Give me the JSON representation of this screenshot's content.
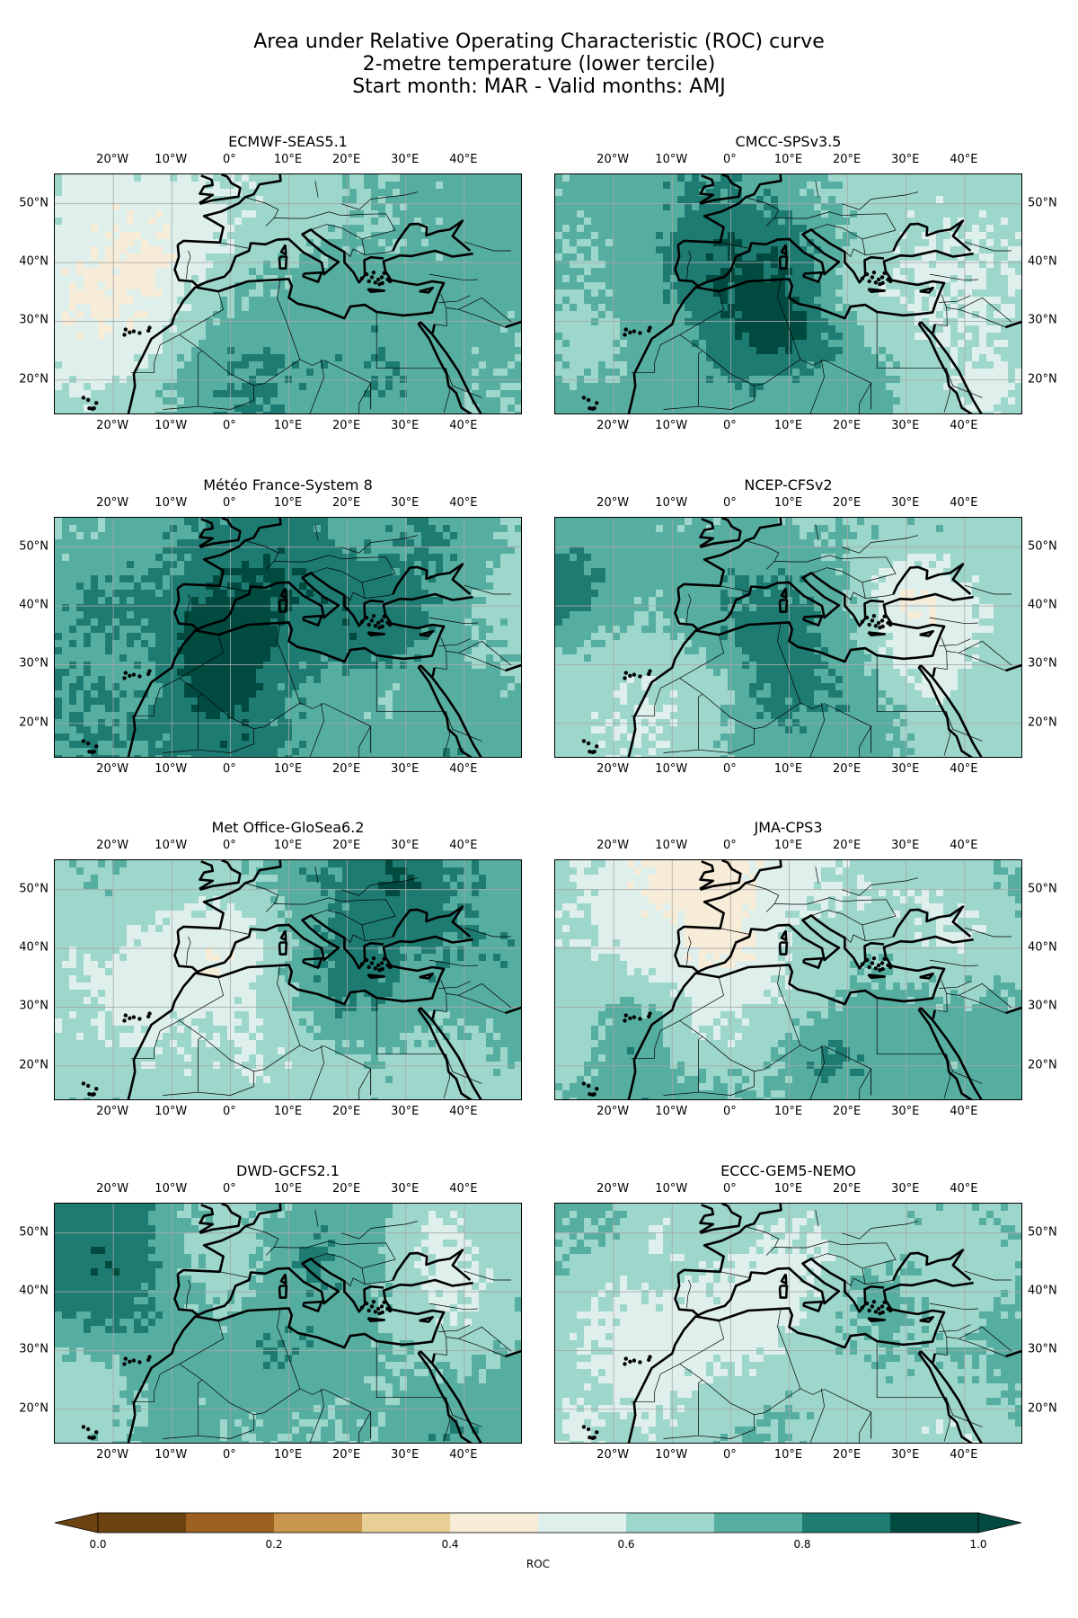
{
  "title": {
    "line1": "Area under Relative Operating Characteristic (ROC) curve",
    "line2": "2-metre temperature (lower tercile)",
    "line3": "Start month: MAR - Valid months: AMJ"
  },
  "map_extent": {
    "lon_min": -30,
    "lon_max": 50,
    "lat_min": 14,
    "lat_max": 55
  },
  "lon_ticks": [
    {
      "lon": -20,
      "label": "20°W"
    },
    {
      "lon": -10,
      "label": "10°W"
    },
    {
      "lon": 0,
      "label": "0°"
    },
    {
      "lon": 10,
      "label": "10°E"
    },
    {
      "lon": 20,
      "label": "20°E"
    },
    {
      "lon": 30,
      "label": "30°E"
    },
    {
      "lon": 40,
      "label": "40°E"
    }
  ],
  "lat_ticks": [
    {
      "lat": 50,
      "label": "50°N"
    },
    {
      "lat": 40,
      "label": "40°N"
    },
    {
      "lat": 30,
      "label": "30°N"
    },
    {
      "lat": 20,
      "label": "20°N"
    }
  ],
  "panels": [
    {
      "title": "ECMWF-SEAS5.1",
      "seed": 11,
      "bias": 0.06
    },
    {
      "title": "CMCC-SPSv3.5",
      "seed": 23,
      "bias": 0.02
    },
    {
      "title": "Météo France-System 8",
      "seed": 37,
      "bias": 0.05
    },
    {
      "title": "NCEP-CFSv2",
      "seed": 41,
      "bias": 0.03
    },
    {
      "title": "Met Office-GloSea6.2",
      "seed": 53,
      "bias": 0.04
    },
    {
      "title": "JMA-CPS3",
      "seed": 67,
      "bias": 0.03
    },
    {
      "title": "DWD-GCFS2.1",
      "seed": 79,
      "bias": 0.07
    },
    {
      "title": "ECCC-GEM5-NEMO",
      "seed": 83,
      "bias": 0.04
    }
  ],
  "colorbar": {
    "label": "ROC",
    "levels": [
      0.0,
      0.1,
      0.2,
      0.3,
      0.4,
      0.5,
      0.6,
      0.7,
      0.8,
      0.9,
      1.0
    ],
    "colors": [
      "#6b4210",
      "#9c6121",
      "#c8954c",
      "#e8cf95",
      "#f6ecd8",
      "#dff0ec",
      "#9dd6cb",
      "#56aea1",
      "#1e7b72",
      "#014a40"
    ],
    "tick_labels": [
      "0.0",
      "0.2",
      "0.4",
      "0.6",
      "0.8",
      "1.0"
    ]
  }
}
